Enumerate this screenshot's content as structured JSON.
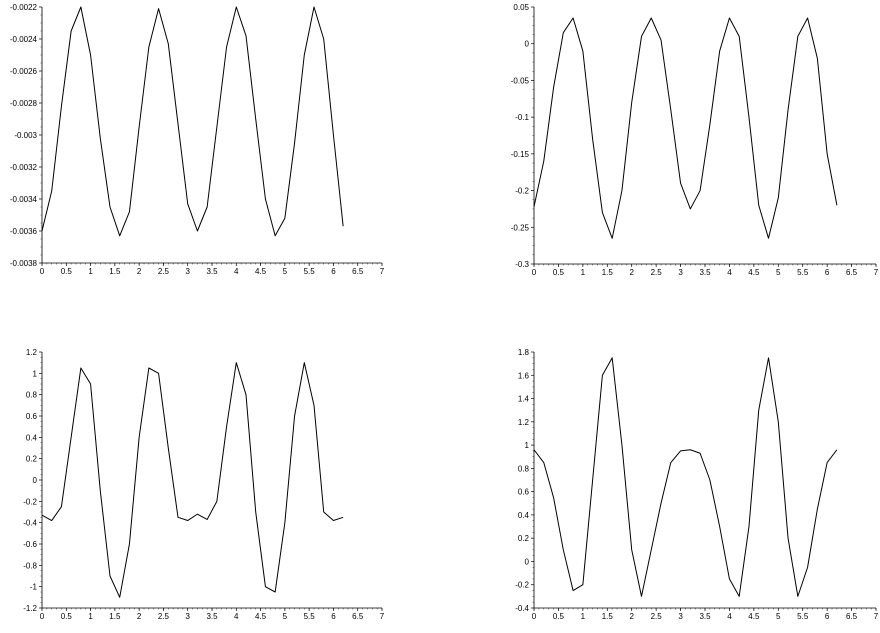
{
  "chart_data": [
    {
      "type": "line",
      "title": "",
      "xlabel": "",
      "ylabel": "",
      "xlim": [
        0,
        7
      ],
      "ylim": [
        -0.0038,
        -0.0022
      ],
      "x_ticks": [
        "0",
        "0.5",
        "1",
        "1.5",
        "2",
        "2.5",
        "3",
        "3.5",
        "4",
        "4.5",
        "5",
        "5.5",
        "6",
        "6.5",
        "7"
      ],
      "y_ticks": [
        "-0.0038",
        "-0.0036",
        "-0.0034",
        "-0.0032",
        "-0.003",
        "-0.0028",
        "-0.0026",
        "-0.0024",
        "-0.0022"
      ],
      "grid": false,
      "legend": "none",
      "series": [
        {
          "x": [
            0,
            0.2,
            0.4,
            0.6,
            0.8,
            1.0,
            1.2,
            1.4,
            1.6,
            1.8,
            2.0,
            2.2,
            2.4,
            2.6,
            2.8,
            3.0,
            3.2,
            3.4,
            3.6,
            3.8,
            4.0,
            4.2,
            4.4,
            4.6,
            4.8,
            5.0,
            5.2,
            5.4,
            5.6,
            5.8,
            6.0,
            6.2
          ],
          "y": [
            -0.0036,
            -0.00335,
            -0.00282,
            -0.00235,
            -0.0022,
            -0.0025,
            -0.00302,
            -0.00345,
            -0.00363,
            -0.00348,
            -0.00295,
            -0.00245,
            -0.00221,
            -0.00243,
            -0.00293,
            -0.00343,
            -0.0036,
            -0.00345,
            -0.00295,
            -0.00245,
            -0.0022,
            -0.00238,
            -0.0029,
            -0.0034,
            -0.00363,
            -0.00352,
            -0.00305,
            -0.0025,
            -0.0022,
            -0.0024,
            -0.003,
            -0.00357
          ]
        }
      ]
    },
    {
      "type": "line",
      "title": "",
      "xlabel": "",
      "ylabel": "",
      "xlim": [
        0,
        7
      ],
      "ylim": [
        -0.3,
        0.05
      ],
      "x_ticks": [
        "0",
        "0.5",
        "1",
        "1.5",
        "2",
        "2.5",
        "3",
        "3.5",
        "4",
        "4.5",
        "5",
        "5.5",
        "6",
        "6.5",
        "7"
      ],
      "y_ticks": [
        "-0.3",
        "-0.25",
        "-0.2",
        "-0.15",
        "-0.1",
        "-0.05",
        "0",
        "0.05"
      ],
      "grid": false,
      "legend": "none",
      "series": [
        {
          "x": [
            0,
            0.2,
            0.4,
            0.6,
            0.8,
            1.0,
            1.2,
            1.4,
            1.6,
            1.8,
            2.0,
            2.2,
            2.4,
            2.6,
            2.8,
            3.0,
            3.2,
            3.4,
            3.6,
            3.8,
            4.0,
            4.2,
            4.4,
            4.6,
            4.8,
            5.0,
            5.2,
            5.4,
            5.6,
            5.8,
            6.0,
            6.2
          ],
          "y": [
            -0.222,
            -0.16,
            -0.06,
            0.015,
            0.035,
            -0.01,
            -0.13,
            -0.23,
            -0.265,
            -0.2,
            -0.08,
            0.01,
            0.035,
            0.005,
            -0.09,
            -0.19,
            -0.225,
            -0.2,
            -0.11,
            -0.01,
            0.035,
            0.01,
            -0.1,
            -0.22,
            -0.265,
            -0.21,
            -0.09,
            0.01,
            0.035,
            -0.02,
            -0.15,
            -0.22
          ]
        }
      ]
    },
    {
      "type": "line",
      "title": "",
      "xlabel": "",
      "ylabel": "",
      "xlim": [
        0,
        7
      ],
      "ylim": [
        -1.2,
        1.2
      ],
      "x_ticks": [
        "0",
        "0.5",
        "1",
        "1.5",
        "2",
        "2.5",
        "3",
        "3.5",
        "4",
        "4.5",
        "5",
        "5.5",
        "6",
        "6.5",
        "7"
      ],
      "y_ticks": [
        "-1.2",
        "-1",
        "-0.8",
        "-0.6",
        "-0.4",
        "-0.2",
        "0",
        "0.2",
        "0.4",
        "0.6",
        "0.8",
        "1",
        "1.2"
      ],
      "grid": false,
      "legend": "none",
      "series": [
        {
          "x": [
            0,
            0.2,
            0.4,
            0.6,
            0.8,
            1.0,
            1.2,
            1.4,
            1.6,
            1.8,
            2.0,
            2.2,
            2.4,
            2.6,
            2.8,
            3.0,
            3.2,
            3.4,
            3.6,
            3.8,
            4.0,
            4.2,
            4.4,
            4.6,
            4.8,
            5.0,
            5.2,
            5.4,
            5.6,
            5.8,
            6.0,
            6.2
          ],
          "y": [
            -0.33,
            -0.38,
            -0.25,
            0.4,
            1.05,
            0.9,
            -0.1,
            -0.9,
            -1.1,
            -0.6,
            0.4,
            1.05,
            1.0,
            0.3,
            -0.35,
            -0.38,
            -0.32,
            -0.37,
            -0.2,
            0.5,
            1.1,
            0.8,
            -0.3,
            -1.0,
            -1.05,
            -0.4,
            0.6,
            1.1,
            0.7,
            -0.3,
            -0.38,
            -0.35
          ]
        }
      ]
    },
    {
      "type": "line",
      "title": "",
      "xlabel": "",
      "ylabel": "",
      "xlim": [
        0,
        7
      ],
      "ylim": [
        -0.4,
        1.8
      ],
      "x_ticks": [
        "0",
        "0.5",
        "1",
        "1.5",
        "2",
        "2.5",
        "3",
        "3.5",
        "4",
        "4.5",
        "5",
        "5.5",
        "6",
        "6.5",
        "7"
      ],
      "y_ticks": [
        "-0.4",
        "-0.2",
        "0",
        "0.2",
        "0.4",
        "0.6",
        "0.8",
        "1",
        "1.2",
        "1.4",
        "1.6",
        "1.8"
      ],
      "grid": false,
      "legend": "none",
      "series": [
        {
          "x": [
            0,
            0.2,
            0.4,
            0.6,
            0.8,
            1.0,
            1.2,
            1.4,
            1.6,
            1.8,
            2.0,
            2.2,
            2.4,
            2.6,
            2.8,
            3.0,
            3.2,
            3.4,
            3.6,
            3.8,
            4.0,
            4.2,
            4.4,
            4.6,
            4.8,
            5.0,
            5.2,
            5.4,
            5.6,
            5.8,
            6.0,
            6.2
          ],
          "y": [
            0.96,
            0.85,
            0.55,
            0.1,
            -0.25,
            -0.2,
            0.7,
            1.6,
            1.75,
            1.0,
            0.1,
            -0.3,
            0.1,
            0.5,
            0.85,
            0.95,
            0.96,
            0.93,
            0.7,
            0.3,
            -0.15,
            -0.3,
            0.3,
            1.3,
            1.75,
            1.2,
            0.2,
            -0.3,
            -0.05,
            0.45,
            0.85,
            0.96
          ]
        }
      ]
    }
  ]
}
